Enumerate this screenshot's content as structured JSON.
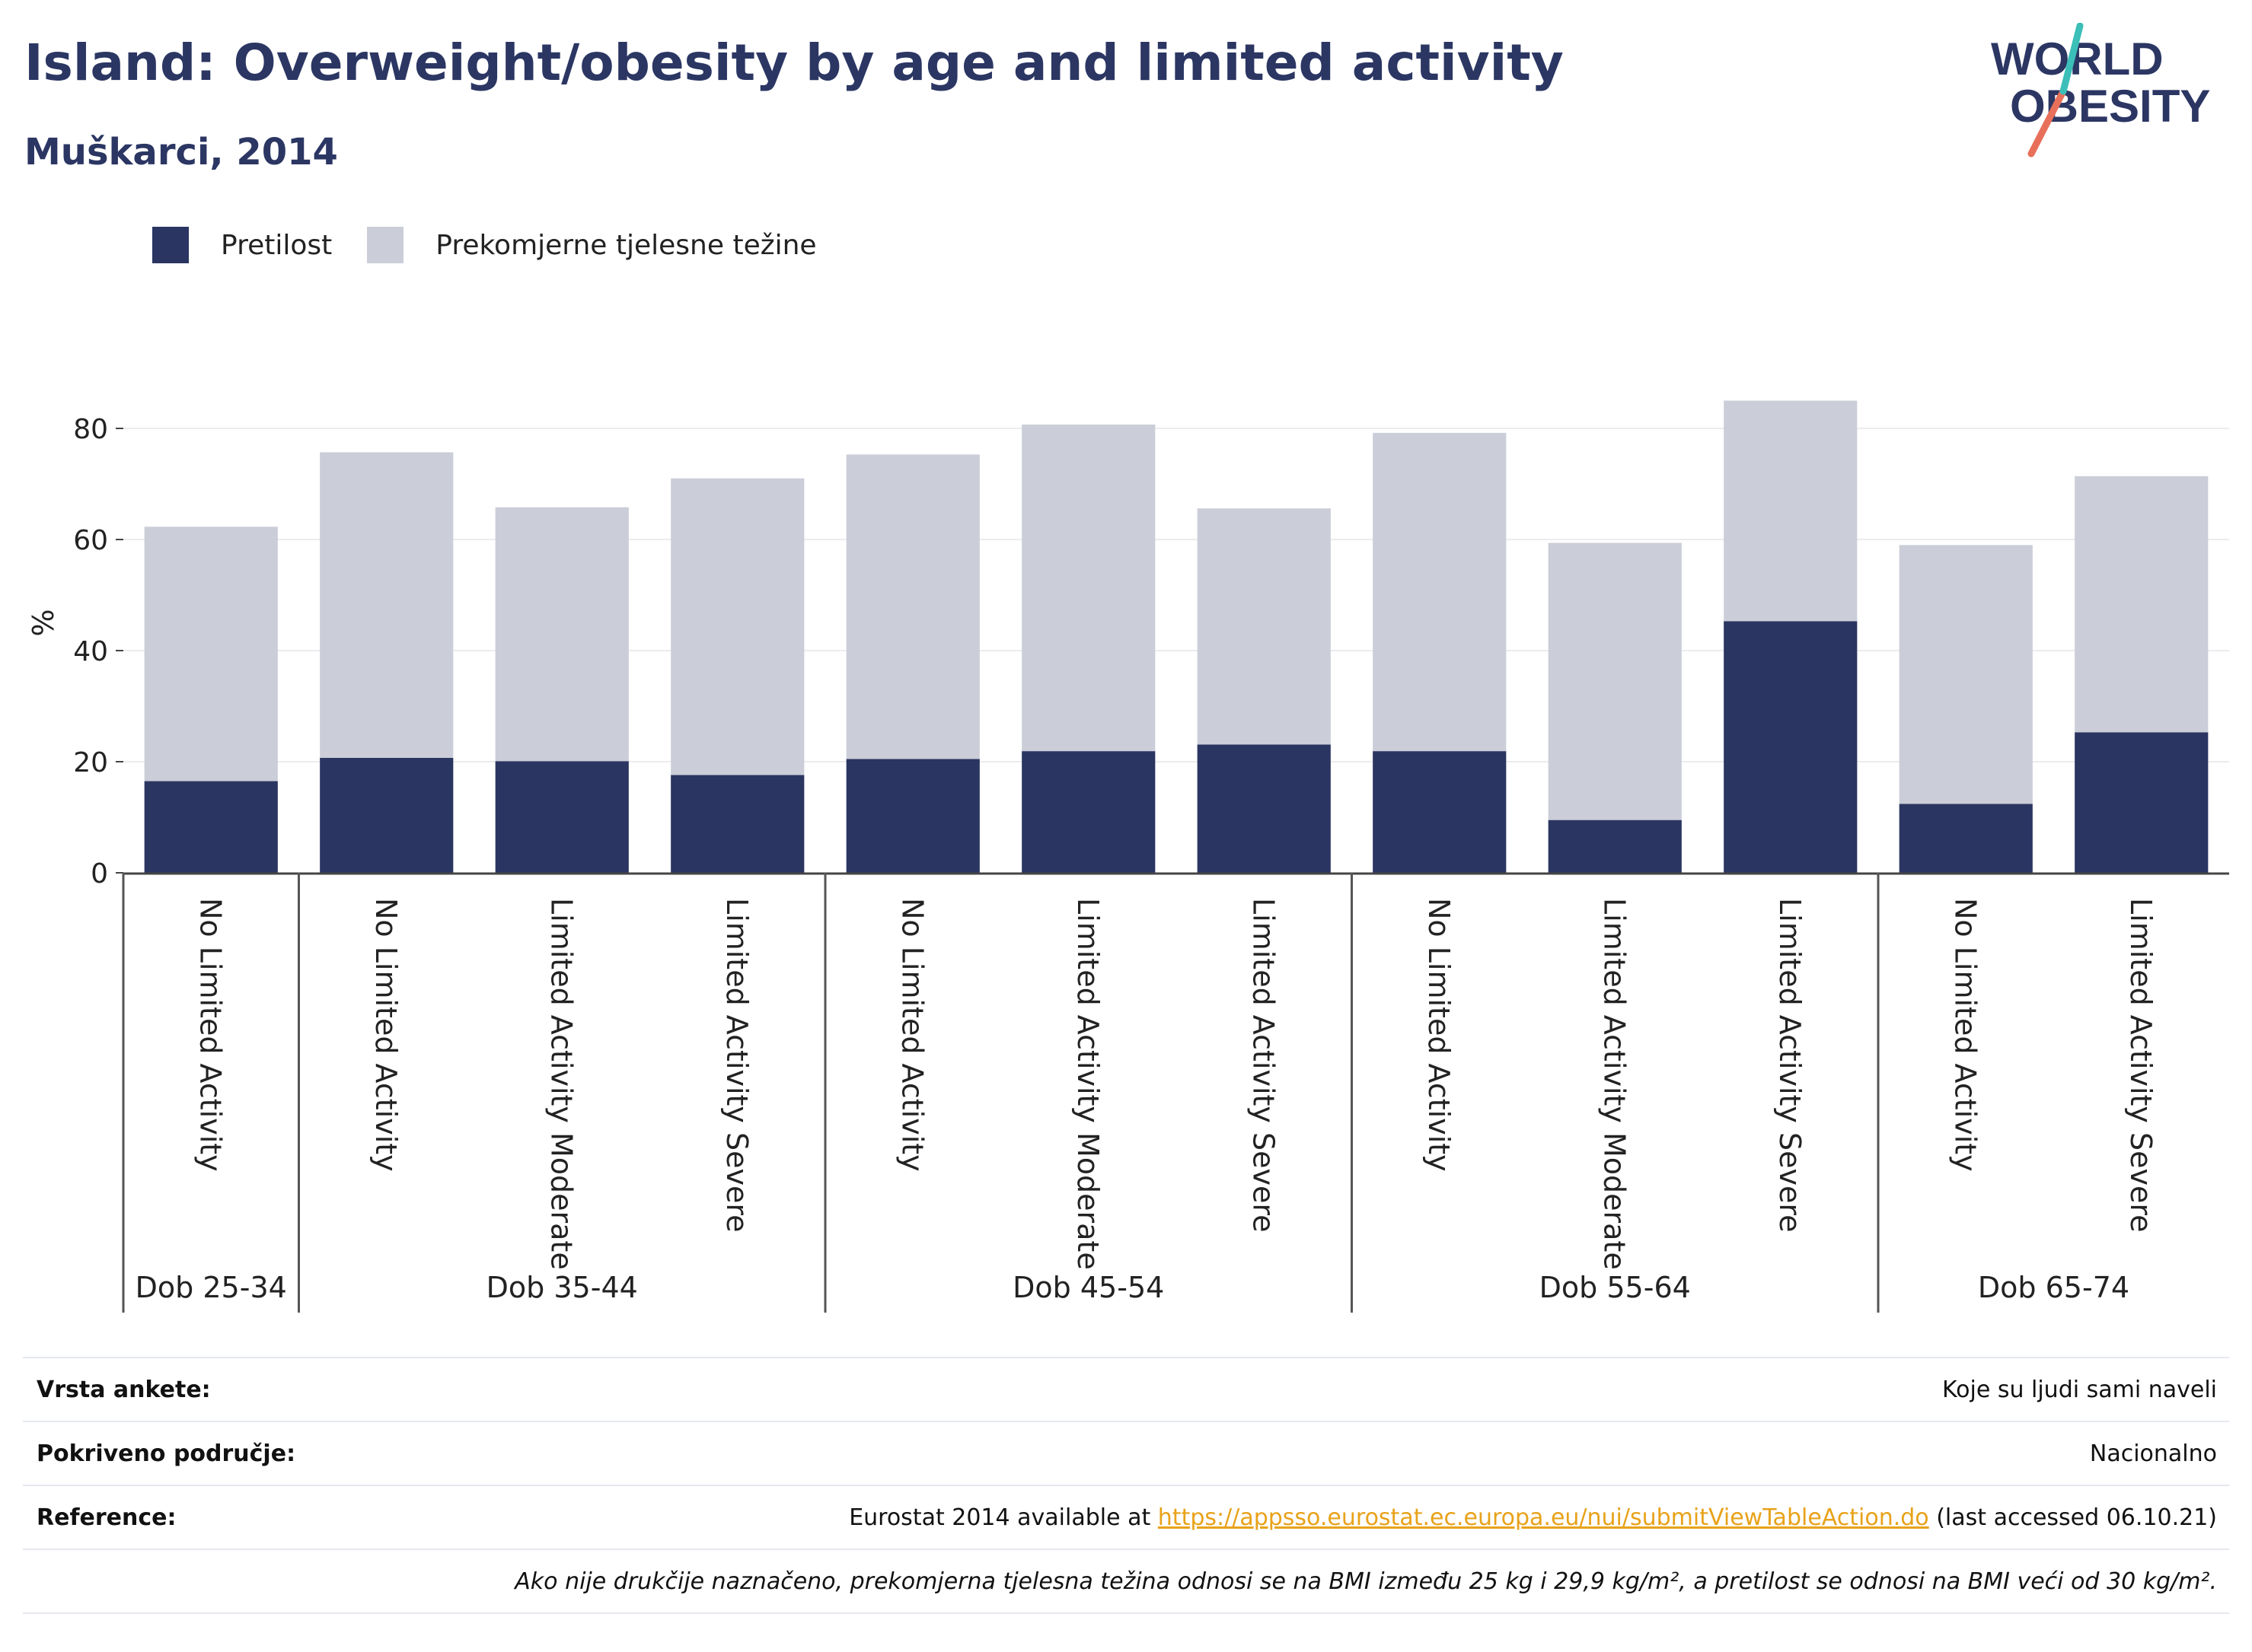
{
  "header": {
    "title": "Island: Overweight/obesity by age and limited activity",
    "subtitle": "Muškarci, 2014"
  },
  "logo": {
    "line1": "WORLD",
    "line2": "OBESITY"
  },
  "legend": [
    {
      "label": "Pretilost",
      "color": "#2a3561"
    },
    {
      "label": "Prekomjerne tjelesne težine",
      "color": "#cbcdd8"
    }
  ],
  "chart_data": {
    "type": "bar",
    "stacked": true,
    "ylabel": "%",
    "ylim": [
      0,
      90
    ],
    "yticks": [
      0,
      20,
      40,
      60,
      80
    ],
    "grid": true,
    "legend_position": "top-left",
    "categories": [
      "No Limited Activity",
      "No Limited Activity",
      "Limited Activity Moderate",
      "Limited Activity Severe",
      "No Limited Activity",
      "Limited Activity Moderate",
      "Limited Activity Severe",
      "No Limited Activity",
      "Limited Activity Moderate",
      "Limited Activity Severe",
      "No Limited Activity",
      "Limited Activity Severe"
    ],
    "groups": [
      {
        "label": "Dob 25-34",
        "count": 1
      },
      {
        "label": "Dob 35-44",
        "count": 3
      },
      {
        "label": "Dob 45-54",
        "count": 3
      },
      {
        "label": "Dob 55-64",
        "count": 3
      },
      {
        "label": "Dob 65-74",
        "count": 2
      }
    ],
    "series": [
      {
        "name": "Pretilost",
        "color": "#2a3561",
        "values": [
          16.5,
          20.7,
          20.1,
          17.6,
          20.5,
          21.9,
          23.1,
          21.9,
          9.5,
          45.3,
          12.4,
          25.3
        ]
      },
      {
        "name": "Prekomjerne tjelesne težine",
        "color": "#cbcdd8",
        "values": [
          45.8,
          55.0,
          45.7,
          53.4,
          54.8,
          58.8,
          42.5,
          57.3,
          49.9,
          39.7,
          46.6,
          46.1
        ]
      }
    ]
  },
  "meta": {
    "survey_label": "Vrsta ankete:",
    "survey_value": "Koje su ljudi sami naveli",
    "coverage_label": "Pokriveno područje:",
    "coverage_value": "Nacionalno",
    "reference_label": "Reference:",
    "reference_prefix": "Eurostat 2014 available at",
    "reference_link": "https://appsso.eurostat.ec.europa.eu/nui/submitViewTableAction.do",
    "reference_suffix": "(last accessed 06.10.21)",
    "note": "Ako nije drukčije naznačeno, prekomjerna tjelesna težina odnosi se na BMI između 25 kg i 29,9 kg/m², a pretilost se odnosi na BMI veći od 30 kg/m²."
  }
}
